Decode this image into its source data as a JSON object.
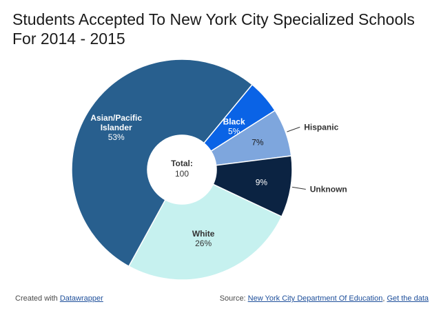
{
  "chart_data": {
    "type": "pie",
    "title": "Students Accepted To New York City Specialized Schools For 2014 - 2015",
    "center_label": "Total:",
    "center_value": "100",
    "slices": [
      {
        "name": "Black",
        "label": "5%",
        "value": 5,
        "color": "#0a63e6",
        "label_placement": "inside",
        "label_color": "#ffffff"
      },
      {
        "name": "Hispanic",
        "label": "7%",
        "value": 7,
        "color": "#7ea6dd",
        "label_placement": "outside",
        "label_color": "#1a1a1a"
      },
      {
        "name": "Unknown",
        "label": "9%",
        "value": 9,
        "color": "#0b2342",
        "label_placement": "outside",
        "label_color": "#ffffff"
      },
      {
        "name": "White",
        "label": "26%",
        "value": 26,
        "color": "#c6f1ef",
        "label_placement": "inside",
        "label_color": "#333333"
      },
      {
        "name": "Asian/Pacific Islander",
        "label": "53%",
        "value": 53,
        "color": "#285f8e",
        "label_placement": "inside",
        "label_color": "#ffffff"
      }
    ]
  },
  "footer": {
    "created_prefix": "Created with ",
    "created_link": "Datawrapper",
    "source_prefix": "Source: ",
    "source_link": "New York City Department Of Education",
    "separator": ", ",
    "data_link": "Get the data"
  }
}
